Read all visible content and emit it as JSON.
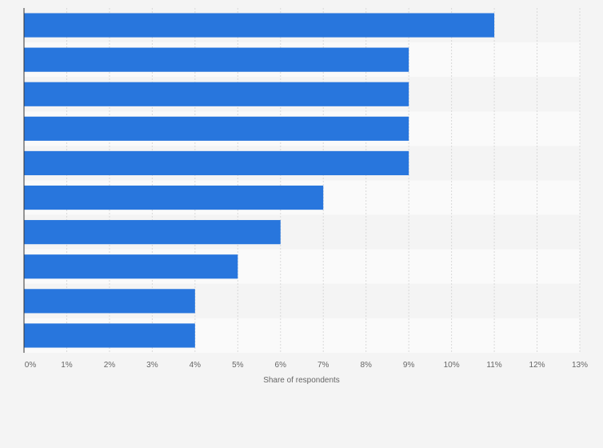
{
  "chart_data": {
    "type": "bar",
    "orientation": "horizontal",
    "categories": [
      "",
      "",
      "",
      "",
      "",
      "",
      "",
      "",
      "",
      ""
    ],
    "values": [
      11,
      9,
      9,
      9,
      9,
      7,
      6,
      5,
      4,
      4
    ],
    "xlabel": "Share of respondents",
    "xlim": [
      0,
      13
    ],
    "x_ticks": [
      "0%",
      "1%",
      "2%",
      "3%",
      "4%",
      "5%",
      "6%",
      "7%",
      "8%",
      "9%",
      "10%",
      "11%",
      "12%",
      "13%"
    ],
    "grid": true,
    "bar_color": "#2876dd",
    "band_colors": [
      "#f4f4f4",
      "#fafafa"
    ],
    "background": "#f4f4f4"
  }
}
